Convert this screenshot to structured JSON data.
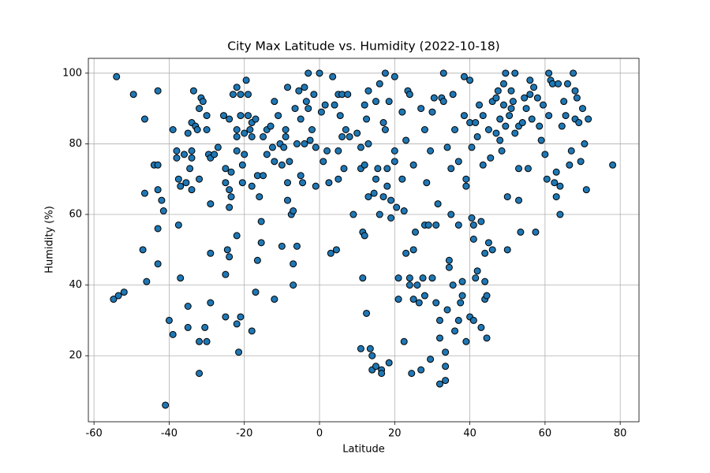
{
  "chart_data": {
    "type": "scatter",
    "title": "City Max Latitude vs. Humidity (2022-10-18)",
    "x_label": "Latitude",
    "y_label": "Humidity (%)",
    "color": "#1f77b4",
    "edge_color": "#000000",
    "grid": true,
    "xlim": [
      -61.5,
      85
    ],
    "ylim": [
      1.3,
      104.2
    ],
    "xticks": [
      -60,
      -40,
      -20,
      0,
      20,
      40,
      60,
      80
    ],
    "yticks": [
      20,
      40,
      60,
      80,
      100
    ],
    "x": [
      -54.8,
      -53.5,
      -52,
      -54,
      -49.5,
      -46.5,
      -46.5,
      -47,
      -46,
      -44,
      -43,
      -43,
      -43,
      -43,
      -43,
      -42,
      -41.5,
      -41,
      -40,
      -39,
      -39,
      -38,
      -38,
      -37.5,
      -37.5,
      -37,
      -37,
      -36,
      -35.5,
      -35,
      -35,
      -35,
      -34.5,
      -34,
      -34,
      -34,
      -34,
      -33.5,
      -33,
      -32.5,
      -32,
      -32,
      -32,
      -32,
      -31.5,
      -31,
      -30.5,
      -30,
      -30,
      -30,
      -29.5,
      -29,
      -29,
      -29,
      -29,
      -28,
      -27,
      -25.5,
      -25,
      -25,
      -25,
      -25,
      -24.5,
      -24,
      -24,
      -24,
      -24,
      -23.5,
      -23.5,
      -23,
      -22,
      -22,
      -22,
      -22,
      -22,
      -22,
      -21.5,
      -21,
      -21,
      -21,
      -20.5,
      -20.5,
      -20,
      -20,
      -19.5,
      -19,
      -19,
      -18.5,
      -18,
      -18,
      -17,
      -18,
      -18,
      -17,
      -16.5,
      -16.5,
      -16,
      -15.5,
      -15.5,
      -15,
      -15,
      -14,
      -14,
      -13,
      -12.5,
      -12,
      -12,
      -12,
      -11,
      -10.5,
      -10,
      -10,
      -9.5,
      -9,
      -9,
      -8.5,
      -8.5,
      -8.5,
      -8,
      -7.5,
      -7,
      -7,
      -7,
      -6.5,
      -6,
      -6,
      -5.5,
      -5,
      -5,
      -4.5,
      -4,
      -4,
      -3.5,
      -3,
      -3,
      -2.5,
      -2,
      -1.5,
      -1,
      -1,
      0,
      0.5,
      1,
      1.5,
      2,
      2.5,
      3,
      3.5,
      4,
      4.5,
      5,
      5,
      5,
      5.5,
      6,
      6,
      6.5,
      7,
      7.5,
      8,
      9,
      10,
      11,
      11,
      11,
      11.5,
      11.5,
      12,
      12,
      12,
      12.5,
      12.5,
      13,
      13,
      13,
      13.5,
      14,
      14,
      14.5,
      15,
      15,
      15,
      15.5,
      16,
      16,
      16.5,
      16.5,
      17,
      17,
      17.5,
      17.5,
      18,
      18,
      18.5,
      18.5,
      19,
      19,
      20,
      20,
      20,
      20.5,
      21,
      21,
      22,
      22,
      22.5,
      22.5,
      23,
      23,
      23.5,
      24,
      24,
      24,
      24.5,
      25,
      25,
      25,
      25.5,
      26,
      26.5,
      27,
      27,
      27.5,
      28,
      28,
      28,
      28.5,
      29,
      29.5,
      29.5,
      30,
      30,
      30.5,
      31,
      31,
      31.5,
      32,
      32,
      32,
      32.5,
      33,
      33,
      33.5,
      33.5,
      33.5,
      34,
      34,
      34.5,
      34.5,
      35,
      35,
      35.5,
      35.5,
      36,
      36,
      37,
      37,
      37,
      37.5,
      38,
      38,
      38.5,
      38.5,
      39,
      39,
      39,
      40,
      40,
      40,
      40.5,
      40.5,
      41,
      41,
      41,
      41.5,
      41.5,
      42,
      42,
      42.5,
      43,
      43,
      43.5,
      43.5,
      44,
      44,
      44,
      44.5,
      44.5,
      45,
      45,
      45.5,
      46,
      46,
      47,
      47,
      47.5,
      48,
      48,
      48.5,
      49,
      49,
      49.5,
      49.5,
      50,
      50,
      50.5,
      51,
      51,
      51.5,
      52,
      52,
      53,
      53,
      53,
      53.5,
      54,
      54.5,
      55,
      55.5,
      56,
      56,
      56.5,
      57,
      57.5,
      58,
      58.5,
      59,
      59.5,
      60,
      60.5,
      61,
      61,
      61.5,
      62,
      62.5,
      63,
      63,
      63.5,
      64,
      64,
      64.5,
      65,
      65.5,
      66,
      66.5,
      67,
      67.5,
      68,
      68,
      68.5,
      69,
      69.5,
      70,
      70.5,
      71,
      71.5,
      78
    ],
    "values": [
      36,
      37,
      38,
      99,
      94,
      87,
      66,
      50,
      41,
      74,
      74,
      95,
      67,
      56,
      46,
      64,
      61,
      6,
      30,
      26,
      84,
      78,
      76,
      70,
      57,
      68,
      42,
      77,
      69,
      34,
      28,
      83,
      73,
      86,
      78,
      76,
      67,
      95,
      85,
      84,
      90,
      70,
      24,
      15,
      93,
      92,
      28,
      88,
      84,
      24,
      77,
      76,
      63,
      49,
      35,
      77,
      79,
      88,
      73,
      69,
      43,
      31,
      50,
      48,
      62,
      67,
      87,
      72,
      65,
      94,
      96,
      84,
      78,
      82,
      54,
      29,
      21,
      31,
      94,
      88,
      74,
      69,
      77,
      83,
      98,
      94,
      88,
      84,
      86,
      82,
      87,
      68,
      27,
      38,
      47,
      71,
      65,
      58,
      52,
      82,
      71,
      77,
      84,
      85,
      79,
      92,
      75,
      36,
      88,
      80,
      74,
      51,
      79,
      84,
      82,
      96,
      69,
      64,
      75,
      60,
      46,
      40,
      61,
      90,
      51,
      80,
      95,
      87,
      71,
      69,
      80,
      96,
      92,
      100,
      90,
      81,
      84,
      94,
      79,
      68,
      100,
      89,
      75,
      91,
      78,
      69,
      49,
      99,
      91,
      50,
      94,
      70,
      78,
      88,
      94,
      82,
      73,
      84,
      94,
      82,
      60,
      83,
      79,
      73,
      22,
      55,
      42,
      54,
      91,
      74,
      87,
      32,
      95,
      80,
      65,
      22,
      20,
      16,
      66,
      92,
      70,
      17,
      73,
      60,
      97,
      16,
      15,
      86,
      65,
      100,
      84,
      73,
      68,
      18,
      92,
      59,
      64,
      78,
      75,
      99,
      62,
      36,
      42,
      70,
      89,
      24,
      61,
      81,
      49,
      95,
      42,
      40,
      94,
      15,
      50,
      36,
      74,
      55,
      40,
      35,
      90,
      16,
      42,
      37,
      57,
      84,
      69,
      57,
      78,
      19,
      42,
      89,
      93,
      35,
      57,
      63,
      12,
      30,
      25,
      93,
      100,
      92,
      21,
      17,
      13,
      33,
      79,
      47,
      45,
      73,
      60,
      94,
      40,
      84,
      27,
      75,
      57,
      30,
      35,
      41,
      37,
      99,
      88,
      70,
      68,
      24,
      31,
      86,
      98,
      79,
      59,
      57,
      53,
      30,
      42,
      86,
      82,
      44,
      91,
      58,
      28,
      88,
      74,
      41,
      36,
      49,
      25,
      37,
      84,
      52,
      76,
      50,
      92,
      93,
      83,
      95,
      87,
      81,
      78,
      97,
      91,
      100,
      85,
      65,
      50,
      88,
      90,
      95,
      92,
      83,
      100,
      64,
      73,
      85,
      55,
      86,
      93,
      90,
      73,
      98,
      94,
      87,
      96,
      55,
      93,
      85,
      81,
      91,
      77,
      70,
      100,
      88,
      98,
      97,
      69,
      72,
      65,
      97,
      60,
      68,
      85,
      92,
      88,
      97,
      74,
      78,
      100,
      95,
      87,
      93,
      86,
      75,
      90,
      80,
      67,
      87,
      74
    ]
  }
}
